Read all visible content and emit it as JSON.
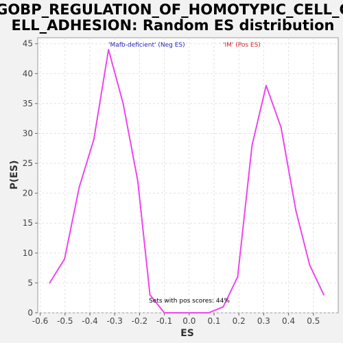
{
  "chart_data": {
    "type": "line",
    "title_lines": [
      "GOBP_REGULATION_OF_HOMOTYPIC_CELL_C",
      "ELL_ADHESION: Random ES distribution"
    ],
    "xlabel": "ES",
    "ylabel": "P(ES)",
    "xlim": [
      -0.61,
      0.6
    ],
    "ylim": [
      0,
      46
    ],
    "xticks": [
      -0.6,
      -0.5,
      -0.4,
      -0.3,
      -0.2,
      -0.1,
      0.0,
      0.1,
      0.2,
      0.3,
      0.4,
      0.5
    ],
    "xtick_labels": [
      "-0.6",
      "-0.5",
      "-0.4",
      "-0.3",
      "-0.2",
      "-0.1",
      "0.0",
      "0.1",
      "0.2",
      "0.3",
      "0.4",
      "0.5"
    ],
    "yticks": [
      0,
      5,
      10,
      15,
      20,
      25,
      30,
      35,
      40,
      45
    ],
    "ytick_labels": [
      "0",
      "5",
      "10",
      "15",
      "20",
      "25",
      "30",
      "35",
      "40",
      "45"
    ],
    "grid": true,
    "legend": [
      {
        "text": "'Mafb-deficient' (Neg ES)",
        "color": "#2222bb"
      },
      {
        "text": "'IM' (Pos ES)",
        "color": "#cc2222"
      }
    ],
    "annotation": "Sets with pos scores: 44%",
    "series": [
      {
        "color": "#ee44ee",
        "x": [
          -0.562,
          -0.502,
          -0.443,
          -0.384,
          -0.325,
          -0.266,
          -0.207,
          -0.158,
          -0.1,
          -0.04,
          0.02,
          0.078,
          0.137,
          0.195,
          0.253,
          0.31,
          0.37,
          0.43,
          0.485,
          0.542
        ],
        "y": [
          5,
          9,
          21,
          29,
          44,
          35,
          22,
          3,
          0,
          0,
          0,
          0,
          1,
          6,
          28,
          38,
          31,
          17,
          8,
          3
        ]
      }
    ]
  }
}
